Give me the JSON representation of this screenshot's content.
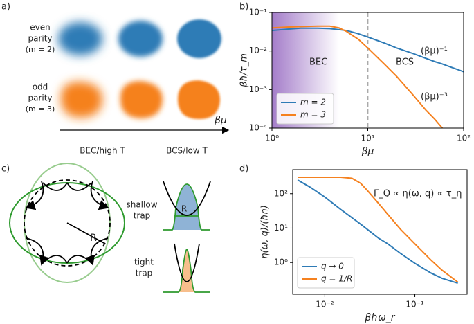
{
  "panel_a": {
    "label": "a)",
    "rows": [
      {
        "line1": "even",
        "line2": "parity",
        "line3": "(m = 2)"
      },
      {
        "line1": "odd",
        "line2": "parity",
        "line3": "(m = 3)"
      }
    ],
    "axis_label": "βμ",
    "left_label": "BEC/high T",
    "right_label": "BCS/low T"
  },
  "panel_c": {
    "label": "c)",
    "radius_label": "R",
    "inset_radius_label": "R",
    "shallow": [
      "shallow",
      "trap"
    ],
    "tight": [
      "tight",
      "trap"
    ]
  },
  "panel_labels": {
    "b": "b)",
    "d": "d)"
  },
  "chart_data": [
    {
      "type": "line",
      "xlabel": "βμ",
      "ylabel": "βħ/τ_m",
      "log_x": true,
      "log_y": true,
      "xlim": [
        1,
        100
      ],
      "ylim": [
        0.0001,
        0.1
      ],
      "xticks": [
        {
          "value": 1,
          "label": "10⁰"
        },
        {
          "value": 10,
          "label": "10¹"
        },
        {
          "value": 100,
          "label": "10²"
        }
      ],
      "yticks": [
        {
          "value": 0.0001,
          "label": "10⁻⁴"
        },
        {
          "value": 0.001,
          "label": "10⁻³"
        },
        {
          "value": 0.01,
          "label": "10⁻²"
        },
        {
          "value": 0.1,
          "label": "10⁻¹"
        }
      ],
      "shaded_region": [
        1,
        5
      ],
      "vline": 10,
      "legend": "lower left",
      "annotations": [
        "BEC",
        "BCS",
        "(βμ)⁻¹",
        "(βμ)⁻³"
      ],
      "x": [
        1,
        1.5,
        2,
        3,
        4,
        5,
        6,
        8,
        10,
        15,
        20,
        30,
        40,
        50,
        60,
        70,
        100
      ],
      "series": [
        {
          "name": "m = 2",
          "color": "#2e7bb6",
          "values": [
            0.034,
            0.037,
            0.039,
            0.039,
            0.038,
            0.036,
            0.034,
            0.028,
            0.023,
            0.016,
            0.012,
            0.0085,
            0.0065,
            0.0053,
            0.0046,
            0.004,
            0.0029
          ]
        },
        {
          "name": "m = 3",
          "color": "#f5811f",
          "values": [
            0.04,
            0.042,
            0.043,
            0.044,
            0.044,
            0.04,
            0.032,
            0.02,
            0.012,
            0.0045,
            0.0022,
            0.0007,
            0.0003,
            0.00017,
            0.0001,
            null,
            null
          ]
        }
      ]
    },
    {
      "type": "line",
      "xlabel": "βħω_r",
      "ylabel": "η(ω, q)/(ħn)",
      "log_x": true,
      "log_y": true,
      "xlim": [
        0.0044,
        0.38
      ],
      "ylim": [
        0.12,
        500
      ],
      "xticks": [
        {
          "value": 0.01,
          "label": "10⁻²"
        },
        {
          "value": 0.1,
          "label": "10⁻¹"
        }
      ],
      "yticks": [
        {
          "value": 1,
          "label": "10⁰"
        },
        {
          "value": 10,
          "label": "10¹"
        },
        {
          "value": 100,
          "label": "10²"
        }
      ],
      "legend": "lower left",
      "annotations": [
        "Γ_Q ∝ η(ω, q) ∝ τ_η"
      ],
      "x": [
        0.005,
        0.007,
        0.01,
        0.015,
        0.02,
        0.025,
        0.03,
        0.04,
        0.05,
        0.07,
        0.1,
        0.15,
        0.2,
        0.3
      ],
      "series": [
        {
          "name": "q → 0",
          "color": "#2e7bb6",
          "values": [
            250,
            150,
            80,
            35,
            20,
            13,
            9,
            5,
            3.5,
            1.8,
            0.95,
            0.5,
            0.35,
            0.25
          ]
        },
        {
          "name": "q = 1/R",
          "color": "#f5811f",
          "values": [
            300,
            300,
            300,
            300,
            280,
            200,
            120,
            50,
            25,
            9,
            3.5,
            1.2,
            0.6,
            0.27
          ]
        }
      ]
    }
  ]
}
